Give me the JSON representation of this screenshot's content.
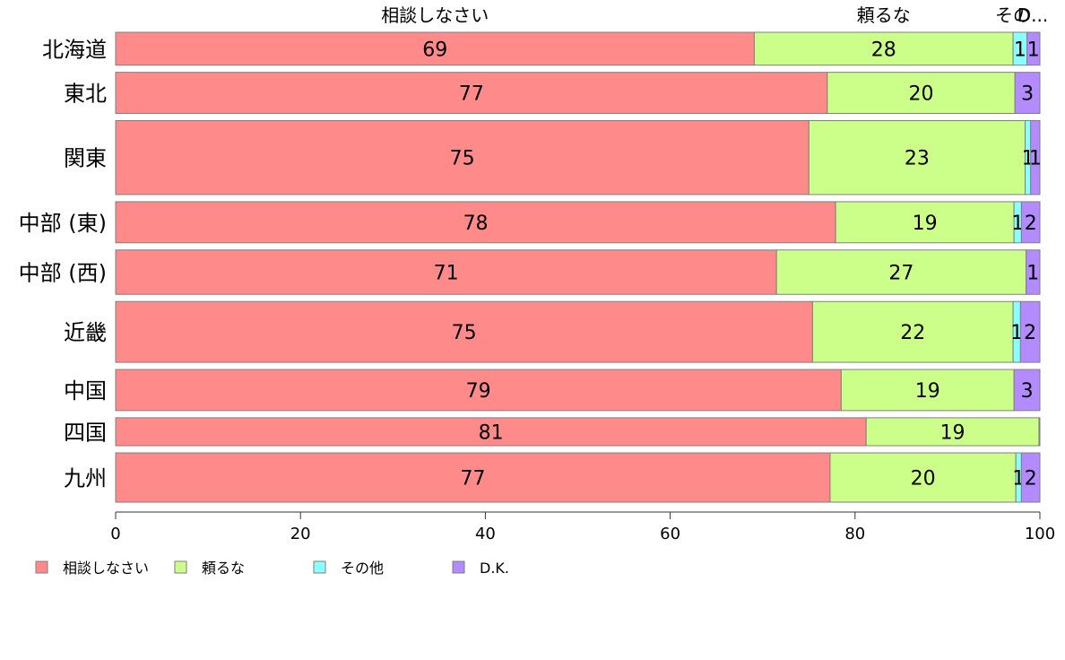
{
  "chart_data": {
    "type": "bar",
    "orientation": "horizontal",
    "stacked": true,
    "categories": [
      "北海道",
      "東北",
      "関東",
      "中部 (東)",
      "中部 (西)",
      "近畿",
      "中国",
      "四国",
      "九州"
    ],
    "series": [
      {
        "name": "相談しなさい",
        "color": "#ff8a8a",
        "values": [
          69.1,
          77.0,
          75.0,
          77.9,
          71.5,
          75.4,
          78.5,
          81.2,
          77.3
        ]
      },
      {
        "name": "頼るな",
        "color": "#ccff8a",
        "values": [
          28.0,
          20.3,
          23.4,
          19.3,
          27.0,
          21.7,
          18.7,
          18.7,
          20.1
        ]
      },
      {
        "name": "その他",
        "color": "#8affff",
        "values": [
          1.5,
          0.0,
          0.6,
          0.8,
          0.0,
          0.8,
          0.0,
          0.0,
          0.6
        ]
      },
      {
        "name": "D.K.",
        "color": "#b48aff",
        "values": [
          1.4,
          2.7,
          1.0,
          2.0,
          1.5,
          2.1,
          2.8,
          0.1,
          2.0
        ]
      }
    ],
    "labels": [
      [
        "69",
        "77",
        "75",
        "78",
        "71",
        "75",
        "79",
        "81",
        "77"
      ],
      [
        "28",
        "20",
        "23",
        "19",
        "27",
        "22",
        "19",
        "19",
        "20"
      ],
      [
        "1",
        "",
        "1",
        "1",
        "",
        "1",
        "",
        "",
        "1"
      ],
      [
        "1",
        "3",
        "1",
        "2",
        "1",
        "2",
        "3",
        "",
        "2"
      ]
    ],
    "bar_weights": [
      1.0,
      1.25,
      2.25,
      1.25,
      1.35,
      1.85,
      1.25,
      0.85,
      1.5
    ],
    "top_labels": [
      "相談しなさい",
      "頼るな",
      "その",
      "D..."
    ],
    "xlim": [
      0,
      100
    ],
    "xticks": [
      0,
      20,
      40,
      60,
      80,
      100
    ],
    "xtick_labels": [
      "0",
      "20",
      "40",
      "60",
      "80",
      "100"
    ],
    "legend_position": "bottom-left",
    "grid": false
  }
}
